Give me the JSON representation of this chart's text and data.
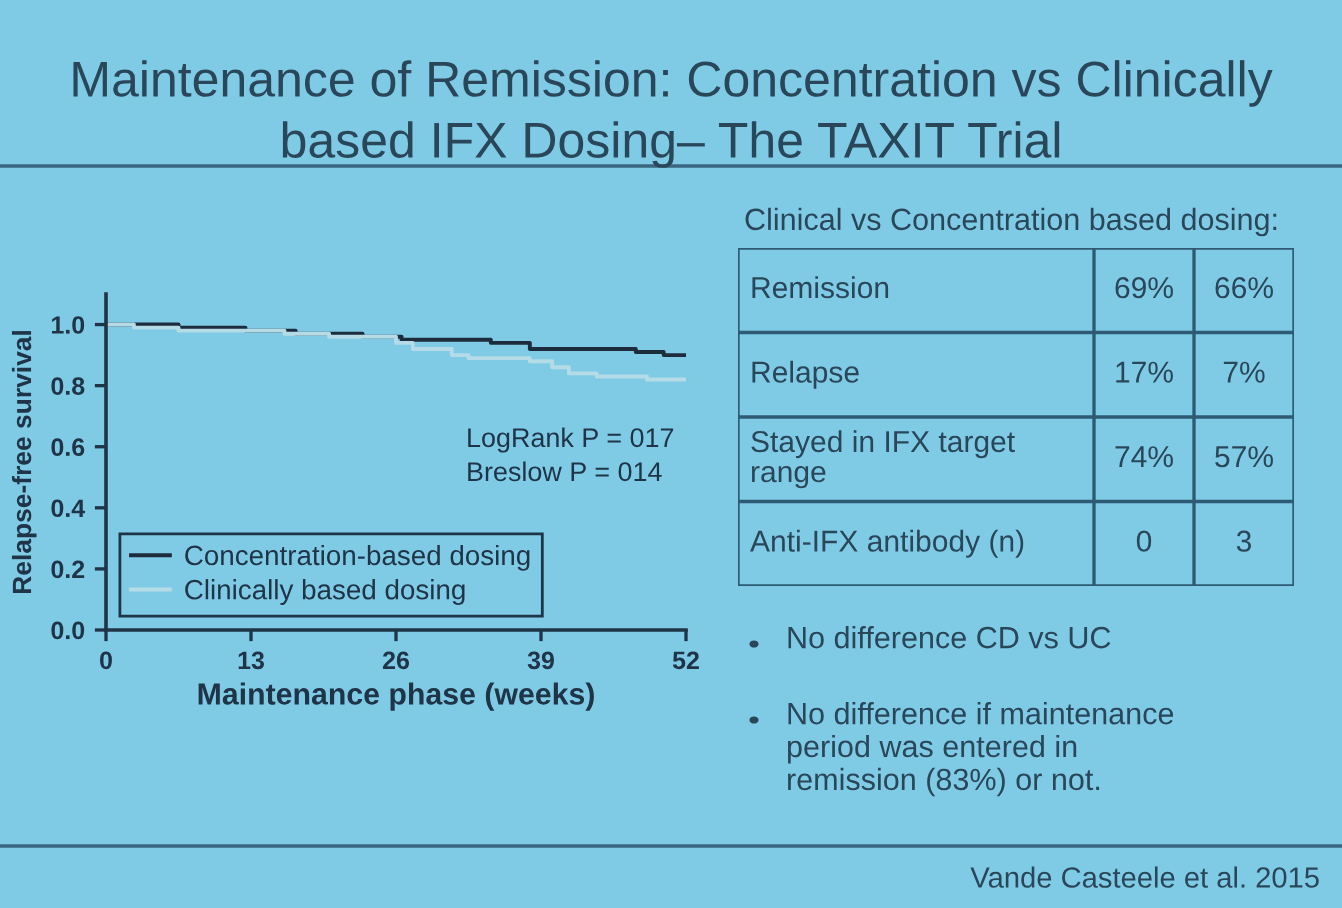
{
  "chart_data": [
    {
      "type": "step",
      "title": "Maintenance of Remission: Concentration vs Clinically based IFX Dosing– The TAXIT Trial",
      "xlabel": "Maintenance phase (weeks)",
      "ylabel": "Relapse-free survival",
      "xlim": [
        0,
        52
      ],
      "xticks": [
        0,
        13,
        26,
        39,
        52
      ],
      "ylim": [
        0,
        1.1
      ],
      "yticks": [
        {
          "value": 0,
          "label": "0.0"
        },
        0.2,
        0.4,
        0.6,
        0.8,
        {
          "value": 1,
          "label": "1.0"
        }
      ],
      "series": [
        {
          "name": "Concentration-based dosing",
          "color": "#1d2c3c",
          "x": [
            0,
            6.5,
            12.5,
            17,
            23,
            26.5,
            34.5,
            38,
            47.5,
            50,
            52
          ],
          "values": [
            1.0,
            0.99,
            0.98,
            0.97,
            0.96,
            0.95,
            0.94,
            0.92,
            0.91,
            0.9,
            0.9
          ]
        },
        {
          "name": "Clinically based dosing",
          "color": "#b4dbe6",
          "x": [
            0,
            2.5,
            6.5,
            16,
            20,
            26,
            27.5,
            31,
            32.5,
            38,
            40,
            41.5,
            44,
            48.5,
            52
          ],
          "values": [
            1.0,
            0.99,
            0.98,
            0.97,
            0.96,
            0.94,
            0.92,
            0.9,
            0.89,
            0.88,
            0.86,
            0.84,
            0.83,
            0.82,
            0.82
          ]
        }
      ],
      "legend": "bottom left",
      "grid": false,
      "annotations": [
        "LogRank P = 017",
        "Breslow P = 014"
      ]
    },
    {
      "type": "other",
      "title": "Clinical vs Concentration based dosing:",
      "categories": [
        "Remission",
        "Relapse",
        "Stayed in IFX target range",
        "Anti-IFX antibody (n)"
      ],
      "series": [
        {
          "values": [
            69,
            17,
            74,
            0
          ],
          "value_labels": [
            "69%",
            "17%",
            "74%",
            "0"
          ]
        },
        {
          "values": [
            66,
            7,
            57,
            3
          ],
          "value_labels": [
            "66%",
            "7%",
            "57%",
            "3"
          ]
        }
      ],
      "annotations": [
        "No difference CD vs UC",
        "No difference if maintenance period was entered in remission (83%) or not.",
        "Vande Casteele et al. 2015"
      ]
    }
  ]
}
